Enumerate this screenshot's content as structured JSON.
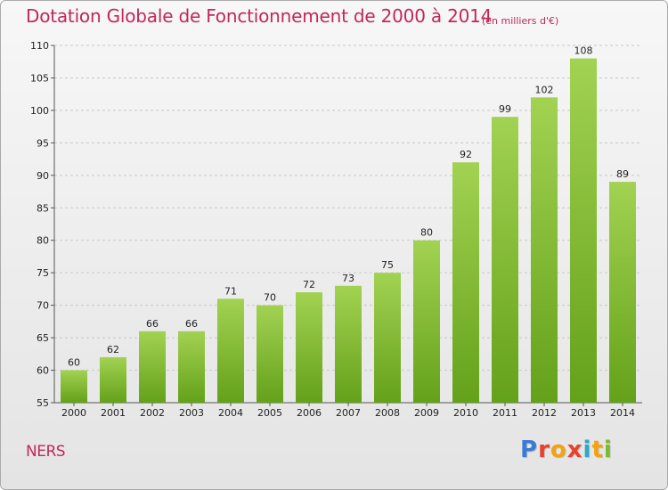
{
  "header": {
    "title": "Dotation Globale de Fonctionnement de 2000 à 2014",
    "unit": "(en milliers d'€)"
  },
  "footer": {
    "commune": "NERS",
    "logo_text": "Proxiti",
    "logo_colors": [
      "#3a7bd5",
      "#e8412c",
      "#f2a30f",
      "#e8412c",
      "#2aa9c9",
      "#f2a30f",
      "#7bbb2c"
    ]
  },
  "chart_data": {
    "type": "bar",
    "title": "Dotation Globale de Fonctionnement de 2000 à 2014",
    "subtitle": "(en milliers d'€)",
    "xlabel": "",
    "ylabel": "",
    "categories": [
      "2000",
      "2001",
      "2002",
      "2003",
      "2004",
      "2005",
      "2006",
      "2007",
      "2008",
      "2009",
      "2010",
      "2011",
      "2012",
      "2013",
      "2014"
    ],
    "values": [
      60,
      62,
      66,
      66,
      71,
      70,
      72,
      73,
      75,
      80,
      92,
      99,
      102,
      108,
      89
    ],
    "ylim": [
      55,
      110
    ],
    "yticks": [
      55,
      60,
      65,
      70,
      75,
      80,
      85,
      90,
      95,
      100,
      105,
      110
    ],
    "grid": true,
    "bar_color_top": "#a2d252",
    "bar_color_bottom": "#64a11a"
  }
}
